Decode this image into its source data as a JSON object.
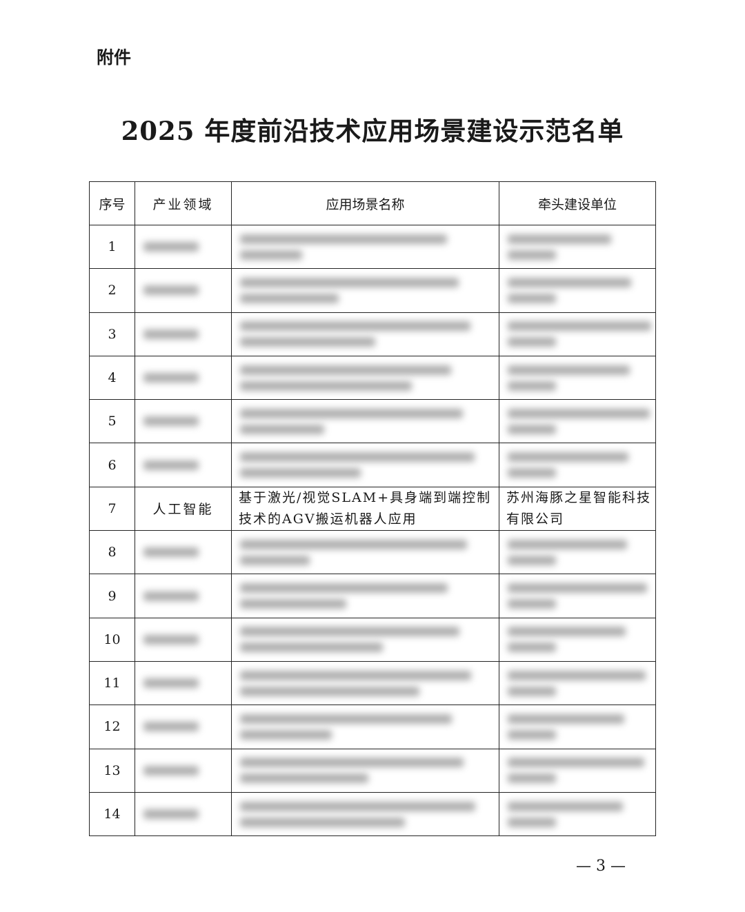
{
  "attachment_label": "附件",
  "title": "2025 年度前沿技术应用场景建设示范名单",
  "table": {
    "headers": [
      "序号",
      "产业领域",
      "应用场景名称",
      "牵头建设单位"
    ],
    "rows": [
      {
        "no": "1",
        "blurred": true
      },
      {
        "no": "2",
        "blurred": true
      },
      {
        "no": "3",
        "blurred": true
      },
      {
        "no": "4",
        "blurred": true
      },
      {
        "no": "5",
        "blurred": true
      },
      {
        "no": "6",
        "blurred": true
      },
      {
        "no": "7",
        "blurred": false,
        "field": "人工智能",
        "scene": "基于激光/视觉SLAM+具身端到端控制技术的AGV搬运机器人应用",
        "unit": "苏州海豚之星智能科技有限公司"
      },
      {
        "no": "8",
        "blurred": true
      },
      {
        "no": "9",
        "blurred": true
      },
      {
        "no": "10",
        "blurred": true
      },
      {
        "no": "11",
        "blurred": true
      },
      {
        "no": "12",
        "blurred": true
      },
      {
        "no": "13",
        "blurred": true
      },
      {
        "no": "14",
        "blurred": true
      }
    ]
  },
  "page_number": "— 3 —"
}
